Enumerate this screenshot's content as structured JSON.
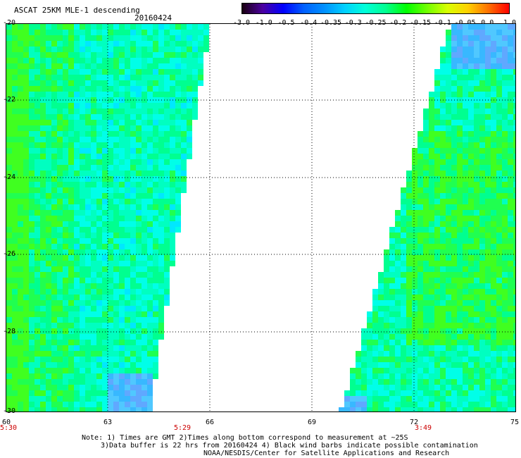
{
  "header": {
    "title": "ASCAT 25KM MLE-1 descending",
    "date": "20160424"
  },
  "colorbar": {
    "labels": [
      "-3.0",
      "-1.0",
      "-0.5",
      "-0.4",
      "-0.35",
      "-0.3",
      "-0.25",
      "-0.2",
      "-0.15",
      "-0.1",
      "-0.05",
      "0.0",
      "1.0"
    ],
    "colors": [
      "#1a0010",
      "#4b00a0",
      "#0000ff",
      "#0060ff",
      "#0090ff",
      "#00d0ff",
      "#00ffd8",
      "#00ff90",
      "#00ff00",
      "#70ff00",
      "#d8ff00",
      "#ffd000",
      "#ff7000",
      "#ff0000"
    ]
  },
  "map": {
    "lat_labels": [
      "-20",
      "-22",
      "-24",
      "-26",
      "-28",
      "-30"
    ],
    "lon_labels": [
      "60",
      "63",
      "66",
      "69",
      "72",
      "75"
    ],
    "time_labels": [
      "5:30",
      "5:29",
      "3:49"
    ],
    "lat_range": [
      -30,
      -20
    ],
    "lon_range": [
      60,
      75
    ]
  },
  "notes": {
    "line1": "Note: 1) Times are GMT 2)Times along bottom correspond to measurement at ~25S",
    "line2": "3)Data buffer is 22 hrs from 20160424 4) Black wind barbs indicate possible contamination",
    "line3": "NOAA/NESDIS/Center for Satellite Applications and Research"
  }
}
